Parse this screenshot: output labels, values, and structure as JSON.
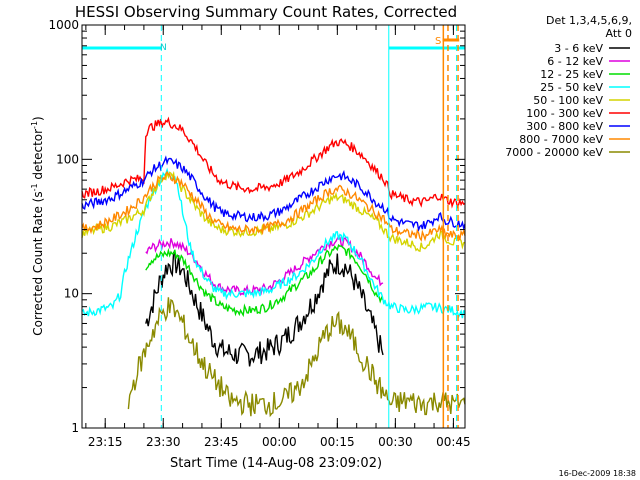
{
  "chart_data": {
    "type": "line",
    "title": "HESSI Observing Summary Count Rates, Corrected",
    "xlabel": "Start Time (14-Aug-08 23:09:02)",
    "ylabel_main": "Corrected Count Rate (s",
    "ylabel_sup1": "-1",
    "ylabel_mid": " detector",
    "ylabel_sup2": "-1",
    "ylabel_end": ")",
    "yscale": "log",
    "ylim": [
      1,
      1000
    ],
    "xlim_minutes": [
      0,
      99
    ],
    "xticks": [
      {
        "label": "23:15",
        "minute": 6
      },
      {
        "label": "23:30",
        "minute": 21
      },
      {
        "label": "23:45",
        "minute": 36
      },
      {
        "label": "00:00",
        "minute": 51
      },
      {
        "label": "00:15",
        "minute": 66
      },
      {
        "label": "00:30",
        "minute": 81
      },
      {
        "label": "00:45",
        "minute": 96
      }
    ],
    "yticks": [
      {
        "label": "1",
        "value": 1
      },
      {
        "label": "10",
        "value": 10
      },
      {
        "label": "100",
        "value": 100
      },
      {
        "label": "1000",
        "value": 1000
      }
    ],
    "legend_header": [
      "Det 1,3,4,5,6,9,",
      "Att 0"
    ],
    "series": [
      {
        "name": "3 - 6 keV",
        "color": "#000000",
        "points": [
          [
            16.5,
            6
          ],
          [
            18,
            8
          ],
          [
            20,
            12
          ],
          [
            22,
            16
          ],
          [
            24,
            17
          ],
          [
            26,
            15
          ],
          [
            28,
            11
          ],
          [
            30,
            8
          ],
          [
            32,
            6
          ],
          [
            34,
            4.5
          ],
          [
            36,
            3.8
          ],
          [
            40,
            3.5
          ],
          [
            44,
            3.5
          ],
          [
            48,
            3.8
          ],
          [
            52,
            4.5
          ],
          [
            56,
            6
          ],
          [
            60,
            9
          ],
          [
            62,
            12
          ],
          [
            64,
            15
          ],
          [
            66,
            17
          ],
          [
            68,
            16
          ],
          [
            70,
            13
          ],
          [
            72,
            10
          ],
          [
            74,
            7
          ],
          [
            76,
            5
          ],
          [
            77.8,
            3.5
          ]
        ]
      },
      {
        "name": "6 - 12 keV",
        "color": "#dd00dd",
        "points": [
          [
            16.5,
            20
          ],
          [
            18,
            22
          ],
          [
            20,
            23
          ],
          [
            22,
            24
          ],
          [
            24,
            24
          ],
          [
            26,
            22
          ],
          [
            28,
            20
          ],
          [
            30,
            17
          ],
          [
            32,
            14
          ],
          [
            34,
            12
          ],
          [
            36,
            11
          ],
          [
            40,
            10.5
          ],
          [
            44,
            10.5
          ],
          [
            48,
            11
          ],
          [
            52,
            13
          ],
          [
            56,
            16
          ],
          [
            60,
            20
          ],
          [
            62,
            22
          ],
          [
            64,
            24
          ],
          [
            66,
            25
          ],
          [
            68,
            24
          ],
          [
            70,
            22
          ],
          [
            72,
            19
          ],
          [
            74,
            16
          ],
          [
            76,
            13
          ],
          [
            77.8,
            12
          ]
        ]
      },
      {
        "name": "12 - 25 keV",
        "color": "#00dd00",
        "points": [
          [
            16.5,
            16
          ],
          [
            18,
            18
          ],
          [
            20,
            19
          ],
          [
            22,
            20
          ],
          [
            24,
            20
          ],
          [
            26,
            18
          ],
          [
            28,
            15
          ],
          [
            30,
            12
          ],
          [
            32,
            10
          ],
          [
            34,
            9
          ],
          [
            36,
            8
          ],
          [
            40,
            7.5
          ],
          [
            44,
            7.5
          ],
          [
            48,
            8
          ],
          [
            52,
            9.5
          ],
          [
            56,
            12
          ],
          [
            60,
            15
          ],
          [
            62,
            18
          ],
          [
            64,
            20
          ],
          [
            66,
            22
          ],
          [
            68,
            21
          ],
          [
            70,
            19
          ],
          [
            72,
            16
          ],
          [
            74,
            13
          ],
          [
            76,
            10
          ],
          [
            77.8,
            9
          ]
        ]
      },
      {
        "name": "25 - 50 keV",
        "color": "#00ffff",
        "points": [
          [
            0,
            7
          ],
          [
            4,
            7.5
          ],
          [
            8,
            8
          ],
          [
            10,
            10
          ],
          [
            11,
            14
          ],
          [
            12,
            18
          ],
          [
            13,
            22
          ],
          [
            14,
            28
          ],
          [
            15,
            33
          ],
          [
            16,
            40
          ],
          [
            18,
            55
          ],
          [
            20,
            68
          ],
          [
            22,
            80
          ],
          [
            24,
            75
          ],
          [
            25,
            60
          ],
          [
            26,
            40
          ],
          [
            27,
            30
          ],
          [
            28,
            22
          ],
          [
            30,
            16
          ],
          [
            32,
            13
          ],
          [
            34,
            11
          ],
          [
            36,
            10
          ],
          [
            40,
            10
          ],
          [
            44,
            10
          ],
          [
            48,
            10.5
          ],
          [
            52,
            12
          ],
          [
            56,
            14
          ],
          [
            60,
            18
          ],
          [
            62,
            22
          ],
          [
            64,
            25
          ],
          [
            66,
            27
          ],
          [
            68,
            26
          ],
          [
            70,
            22
          ],
          [
            72,
            18
          ],
          [
            74,
            14
          ],
          [
            76,
            11
          ],
          [
            78,
            9
          ],
          [
            80,
            8
          ],
          [
            84,
            7.5
          ],
          [
            90,
            8
          ],
          [
            96,
            7.5
          ],
          [
            99,
            7
          ]
        ]
      },
      {
        "name": "50 - 100 keV",
        "color": "#d4d400",
        "points": [
          [
            0,
            28
          ],
          [
            4,
            30
          ],
          [
            8,
            32
          ],
          [
            12,
            36
          ],
          [
            16,
            42
          ],
          [
            18,
            55
          ],
          [
            20,
            70
          ],
          [
            22,
            78
          ],
          [
            24,
            72
          ],
          [
            26,
            60
          ],
          [
            28,
            50
          ],
          [
            30,
            42
          ],
          [
            32,
            36
          ],
          [
            34,
            32
          ],
          [
            36,
            30
          ],
          [
            40,
            29
          ],
          [
            44,
            29
          ],
          [
            48,
            30
          ],
          [
            52,
            32
          ],
          [
            56,
            36
          ],
          [
            60,
            42
          ],
          [
            62,
            46
          ],
          [
            64,
            50
          ],
          [
            66,
            52
          ],
          [
            68,
            50
          ],
          [
            70,
            46
          ],
          [
            72,
            42
          ],
          [
            74,
            38
          ],
          [
            76,
            35
          ],
          [
            78,
            30
          ],
          [
            80,
            26
          ],
          [
            84,
            24
          ],
          [
            88,
            22
          ],
          [
            90,
            24
          ],
          [
            92,
            28
          ],
          [
            94,
            26
          ],
          [
            96,
            24
          ],
          [
            99,
            24
          ]
        ]
      },
      {
        "name": "100 - 300 keV",
        "color": "#ff0000",
        "points": [
          [
            0,
            55
          ],
          [
            4,
            58
          ],
          [
            8,
            62
          ],
          [
            12,
            70
          ],
          [
            16,
            72
          ],
          [
            16.5,
            160
          ],
          [
            18,
            175
          ],
          [
            20,
            185
          ],
          [
            22,
            190
          ],
          [
            24,
            180
          ],
          [
            26,
            165
          ],
          [
            28,
            140
          ],
          [
            30,
            115
          ],
          [
            32,
            92
          ],
          [
            34,
            78
          ],
          [
            36,
            68
          ],
          [
            40,
            62
          ],
          [
            44,
            60
          ],
          [
            48,
            62
          ],
          [
            52,
            68
          ],
          [
            56,
            80
          ],
          [
            60,
            100
          ],
          [
            62,
            112
          ],
          [
            64,
            125
          ],
          [
            66,
            135
          ],
          [
            68,
            132
          ],
          [
            70,
            122
          ],
          [
            72,
            110
          ],
          [
            74,
            96
          ],
          [
            76,
            82
          ],
          [
            78,
            72
          ],
          [
            80,
            55
          ],
          [
            84,
            50
          ],
          [
            88,
            48
          ],
          [
            90,
            50
          ],
          [
            92,
            54
          ],
          [
            94,
            50
          ],
          [
            96,
            48
          ],
          [
            99,
            47
          ]
        ]
      },
      {
        "name": "300 - 800 keV",
        "color": "#0000ff",
        "points": [
          [
            0,
            45
          ],
          [
            4,
            48
          ],
          [
            8,
            52
          ],
          [
            12,
            60
          ],
          [
            16,
            70
          ],
          [
            18,
            82
          ],
          [
            20,
            90
          ],
          [
            22,
            97
          ],
          [
            24,
            93
          ],
          [
            26,
            86
          ],
          [
            28,
            74
          ],
          [
            30,
            62
          ],
          [
            32,
            52
          ],
          [
            34,
            45
          ],
          [
            36,
            40
          ],
          [
            40,
            38
          ],
          [
            44,
            37
          ],
          [
            48,
            38
          ],
          [
            52,
            42
          ],
          [
            56,
            50
          ],
          [
            60,
            60
          ],
          [
            62,
            66
          ],
          [
            64,
            72
          ],
          [
            66,
            76
          ],
          [
            68,
            74
          ],
          [
            70,
            68
          ],
          [
            72,
            62
          ],
          [
            74,
            55
          ],
          [
            76,
            48
          ],
          [
            78,
            44
          ],
          [
            80,
            36
          ],
          [
            84,
            33
          ],
          [
            88,
            32
          ],
          [
            90,
            34
          ],
          [
            92,
            38
          ],
          [
            94,
            35
          ],
          [
            96,
            34
          ],
          [
            99,
            33
          ]
        ]
      },
      {
        "name": "800 - 7000 keV",
        "color": "#ff8800",
        "points": [
          [
            0,
            30
          ],
          [
            4,
            32
          ],
          [
            8,
            36
          ],
          [
            12,
            42
          ],
          [
            16,
            52
          ],
          [
            18,
            62
          ],
          [
            20,
            70
          ],
          [
            22,
            75
          ],
          [
            24,
            72
          ],
          [
            26,
            66
          ],
          [
            28,
            56
          ],
          [
            30,
            48
          ],
          [
            32,
            40
          ],
          [
            34,
            35
          ],
          [
            36,
            32
          ],
          [
            40,
            30
          ],
          [
            44,
            30
          ],
          [
            48,
            31
          ],
          [
            52,
            34
          ],
          [
            56,
            40
          ],
          [
            60,
            48
          ],
          [
            62,
            53
          ],
          [
            64,
            58
          ],
          [
            66,
            60
          ],
          [
            68,
            58
          ],
          [
            70,
            54
          ],
          [
            72,
            49
          ],
          [
            74,
            44
          ],
          [
            76,
            40
          ],
          [
            78,
            36
          ],
          [
            80,
            30
          ],
          [
            84,
            28
          ],
          [
            88,
            27
          ],
          [
            90,
            28
          ],
          [
            92,
            30
          ],
          [
            94,
            28
          ],
          [
            96,
            27
          ],
          [
            99,
            27
          ]
        ]
      },
      {
        "name": "7000 - 20000 keV",
        "color": "#8a8a00",
        "points": [
          [
            12,
            1.6
          ],
          [
            14,
            2.5
          ],
          [
            16,
            3.5
          ],
          [
            18,
            5
          ],
          [
            20,
            6.5
          ],
          [
            22,
            8
          ],
          [
            24,
            7.5
          ],
          [
            26,
            6
          ],
          [
            28,
            4.5
          ],
          [
            30,
            3.5
          ],
          [
            32,
            2.8
          ],
          [
            34,
            2.3
          ],
          [
            36,
            2
          ],
          [
            38,
            1.6
          ],
          [
            44,
            1.5
          ],
          [
            48,
            1.5
          ],
          [
            52,
            1.6
          ],
          [
            56,
            2
          ],
          [
            58,
            2.5
          ],
          [
            60,
            3.2
          ],
          [
            62,
            4.5
          ],
          [
            64,
            5.5
          ],
          [
            66,
            6
          ],
          [
            68,
            5.5
          ],
          [
            70,
            4.5
          ],
          [
            72,
            3.5
          ],
          [
            74,
            2.8
          ],
          [
            76,
            2.2
          ],
          [
            78,
            1.8
          ],
          [
            80,
            1.5
          ],
          [
            84,
            1.6
          ],
          [
            88,
            1.5
          ],
          [
            92,
            1.6
          ],
          [
            96,
            1.5
          ],
          [
            99,
            1.5
          ]
        ]
      }
    ],
    "flags": {
      "night_label": "N",
      "saa_label": "S",
      "night_color": "#00ffff",
      "saa_color": "#ff8800"
    },
    "timestamp": "16-Dec-2009 18:38"
  }
}
